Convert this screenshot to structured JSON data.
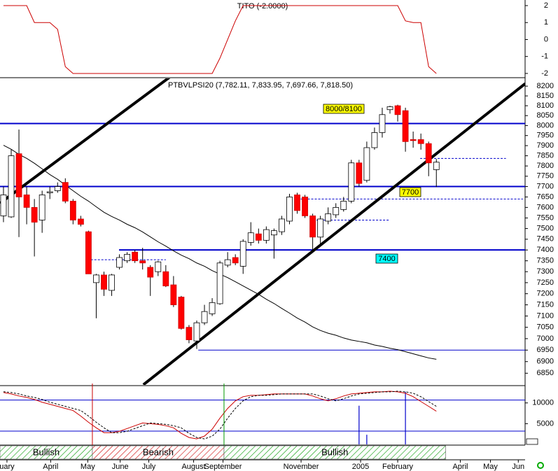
{
  "chart_data": [
    {
      "type": "line",
      "title": "TITO (-2.0000)",
      "color": "#cc0000",
      "values": [
        2,
        2,
        2,
        2,
        1,
        1,
        1,
        0.6,
        -1.6,
        -2,
        -2,
        -2,
        -2,
        -2,
        -2,
        -2,
        -2,
        -2,
        -2,
        -2,
        -2,
        -2,
        -2,
        -2,
        -2,
        -2,
        -2,
        -2,
        -1.1,
        0,
        1.1,
        2,
        2,
        2,
        2,
        2,
        2,
        2,
        2,
        2,
        2,
        2,
        2,
        2,
        2,
        2,
        2,
        2,
        2,
        2,
        2,
        2,
        1.1,
        1,
        1,
        -1.6,
        -2
      ],
      "ylim": [
        -2.25,
        2.33
      ],
      "yticks": [
        2,
        1,
        0,
        -1,
        -2
      ]
    },
    {
      "type": "candlestick",
      "title": "PTBVLPSI20 (7,782.11, 7,833.95, 7,697.66, 7,818.50)",
      "open": [
        7560,
        7555,
        7860,
        7660,
        7600,
        7540,
        7670,
        7680,
        7720,
        7630,
        7545,
        7485,
        7250,
        7285,
        7215,
        7320,
        7350,
        7390,
        7350,
        7320,
        7300,
        7300,
        7240,
        7185,
        7050,
        6990,
        7070,
        7110,
        7155,
        7330,
        7365,
        7325,
        7435,
        7475,
        7445,
        7470,
        7485,
        7535,
        7660,
        7650,
        7560,
        7460,
        7535,
        7565,
        7590,
        7630,
        7815,
        7730,
        7890,
        7965,
        8080,
        8100,
        8075,
        7930,
        7930,
        7910,
        7782.11
      ],
      "high": [
        7700,
        7880,
        7980,
        7700,
        7640,
        7680,
        7700,
        7720,
        7740,
        7640,
        7560,
        7490,
        7290,
        7300,
        7290,
        7380,
        7390,
        7400,
        7410,
        7330,
        7350,
        7330,
        7280,
        7190,
        7060,
        7080,
        7150,
        7180,
        7350,
        7390,
        7380,
        7450,
        7530,
        7500,
        7510,
        7500,
        7560,
        7665,
        7670,
        7660,
        7570,
        7560,
        7600,
        7620,
        7650,
        7830,
        7830,
        7920,
        7990,
        8090,
        8100,
        8105,
        8090,
        7970,
        7960,
        7920,
        7833.95
      ],
      "low": [
        7530,
        7550,
        7460,
        7520,
        7370,
        7480,
        7640,
        7670,
        7620,
        7520,
        7510,
        7290,
        7090,
        7190,
        7190,
        7310,
        7340,
        7340,
        7310,
        7190,
        7280,
        7230,
        7140,
        7040,
        6980,
        6955,
        7060,
        7100,
        7150,
        7320,
        7330,
        7290,
        7420,
        7430,
        7430,
        7360,
        7470,
        7520,
        7570,
        7550,
        7400,
        7420,
        7520,
        7550,
        7580,
        7620,
        7700,
        7720,
        7880,
        7940,
        8060,
        8020,
        7870,
        7890,
        7880,
        7750,
        7697.66
      ],
      "close": [
        7660,
        7850,
        7650,
        7600,
        7530,
        7660,
        7675,
        7700,
        7630,
        7540,
        7520,
        7290,
        7285,
        7220,
        7285,
        7365,
        7380,
        7350,
        7340,
        7275,
        7345,
        7235,
        7150,
        7045,
        6995,
        7070,
        7120,
        7160,
        7340,
        7355,
        7340,
        7440,
        7480,
        7445,
        7495,
        7490,
        7545,
        7650,
        7585,
        7560,
        7460,
        7545,
        7570,
        7600,
        7630,
        7815,
        7715,
        7890,
        7965,
        8055,
        8095,
        8055,
        7920,
        7925,
        7910,
        7815,
        7818.5
      ],
      "up_color": "#ffffff",
      "down_color": "#ff0000",
      "moving_average": {
        "color": "#000000",
        "values": [
          7902,
          7882,
          7857,
          7837,
          7813,
          7786,
          7758,
          7735,
          7707,
          7680,
          7653,
          7630,
          7603,
          7577,
          7557,
          7540,
          7520,
          7504,
          7484,
          7461,
          7438,
          7418,
          7396,
          7376,
          7360,
          7340,
          7325,
          7305,
          7289,
          7273,
          7254,
          7235,
          7216,
          7197,
          7175,
          7156,
          7134,
          7113,
          7091,
          7073,
          7052,
          7036,
          7024,
          7015,
          7003,
          6994,
          6988,
          6982,
          6972,
          6966,
          6958,
          6952,
          6943,
          6934,
          6925,
          6916,
          6910
        ]
      },
      "log_scale": true,
      "ylim": [
        6800,
        8240
      ],
      "yticks": [
        6850,
        6900,
        6950,
        7000,
        7050,
        7100,
        7150,
        7200,
        7250,
        7300,
        7350,
        7400,
        7450,
        7500,
        7550,
        7600,
        7650,
        7700,
        7750,
        7800,
        7850,
        7900,
        7950,
        8000,
        8050,
        8100,
        8150,
        8200
      ],
      "xlim": [
        -0.45,
        67.48
      ],
      "xticks": [
        {
          "value": 0.45,
          "label": "uary"
        },
        {
          "value": 6.1,
          "label": "April"
        },
        {
          "value": 10.9,
          "label": "May"
        },
        {
          "value": 15.1,
          "label": "June"
        },
        {
          "value": 18.8,
          "label": "July"
        },
        {
          "value": 24.6,
          "label": "August"
        },
        {
          "value": 28.4,
          "label": "September"
        },
        {
          "value": 38.5,
          "label": "November"
        },
        {
          "value": 46.2,
          "label": "2005"
        },
        {
          "value": 51.0,
          "label": "February"
        },
        {
          "value": 59.1,
          "label": "April"
        },
        {
          "value": 63.0,
          "label": "May"
        },
        {
          "value": 66.6,
          "label": "Jun"
        }
      ],
      "levels": [
        {
          "value": 8010,
          "start": -0.45,
          "end": 67.48,
          "width": 2,
          "color": "#0000cc"
        },
        {
          "value": 7700,
          "start": -0.45,
          "end": 67.48,
          "width": 2,
          "color": "#0000cc"
        },
        {
          "value": 7400,
          "start": 14.95,
          "end": 67.48,
          "width": 2,
          "color": "#0000cc"
        },
        {
          "value": 6950,
          "start": 25.2,
          "end": 67.48,
          "width": 1,
          "color": "#0000cc"
        }
      ],
      "dashed_levels": [
        {
          "value": 7837,
          "start": 53.9,
          "end": 65.0,
          "color": "#0000cc"
        },
        {
          "value": 7640,
          "start": 38.0,
          "end": 67.2,
          "color": "#0000cc"
        },
        {
          "value": 7540,
          "start": 40.5,
          "end": 49.9,
          "color": "#0000cc"
        },
        {
          "value": 7355,
          "start": 11.3,
          "end": 21.0,
          "color": "#0000cc"
        }
      ],
      "trendlines": [
        {
          "x": [
            -0.45,
            22.2
          ],
          "y": [
            7620,
            8267
          ],
          "color": "#000000"
        },
        {
          "x": [
            18.1,
            67.5
          ],
          "y": [
            6801,
            8213
          ],
          "color": "#000000"
        }
      ],
      "annotations": [
        {
          "text": "8000/8100",
          "color": "#ffff00"
        },
        {
          "text": "7700",
          "color": "#ffff00"
        },
        {
          "text": "7400",
          "color": "#00ffff"
        }
      ]
    },
    {
      "type": "line",
      "series": [
        {
          "color": "#cc0000",
          "dash": false,
          "values": [
            12500,
            12170,
            11670,
            11330,
            10830,
            10170,
            9670,
            9170,
            8670,
            8170,
            6830,
            5330,
            4000,
            2830,
            2830,
            3170,
            3830,
            4500,
            5170,
            5000,
            4830,
            4500,
            4000,
            2670,
            1670,
            1330,
            2000,
            3670,
            6330,
            8670,
            10500,
            11500,
            11830,
            11830,
            12000,
            12170,
            12170,
            12170,
            12170,
            12170,
            11670,
            11000,
            10500,
            11000,
            11670,
            12170,
            12330,
            12500,
            12670,
            12670,
            12830,
            12670,
            12330,
            11500,
            10330,
            9170,
            8000
          ]
        },
        {
          "color": "#000000",
          "dash": true,
          "values": [
            12700,
            12500,
            12170,
            11670,
            11330,
            10830,
            10170,
            9670,
            9170,
            8670,
            8170,
            6830,
            5330,
            4000,
            2830,
            2830,
            3170,
            3830,
            4500,
            5170,
            5000,
            4830,
            4500,
            4000,
            2670,
            1670,
            1330,
            2000,
            3670,
            6330,
            8670,
            10500,
            11500,
            11830,
            11830,
            12000,
            12170,
            12170,
            12170,
            12170,
            12170,
            11670,
            11000,
            10500,
            11000,
            11670,
            12170,
            12330,
            12500,
            12670,
            12670,
            12830,
            12670,
            12330,
            11500,
            10330,
            9170
          ]
        }
      ],
      "ylim": [
        0,
        14000
      ],
      "yticks": [
        10000,
        5000
      ],
      "levels": [
        10700,
        3200
      ],
      "level_color": "#0000cc",
      "bars": {
        "x": [
          46,
          47,
          52
        ],
        "values": [
          9330,
          2330,
          12670
        ],
        "color": "#0000cc"
      },
      "zones": [
        {
          "label": "Bullish",
          "start": -0.45,
          "end": 11.5,
          "color": "#009900"
        },
        {
          "label": "Bearish",
          "start": 11.5,
          "end": 28.53,
          "color": "#cc0000"
        },
        {
          "label": "Bullish",
          "start": 28.53,
          "end": 57.2,
          "color": "#009900"
        }
      ]
    }
  ]
}
